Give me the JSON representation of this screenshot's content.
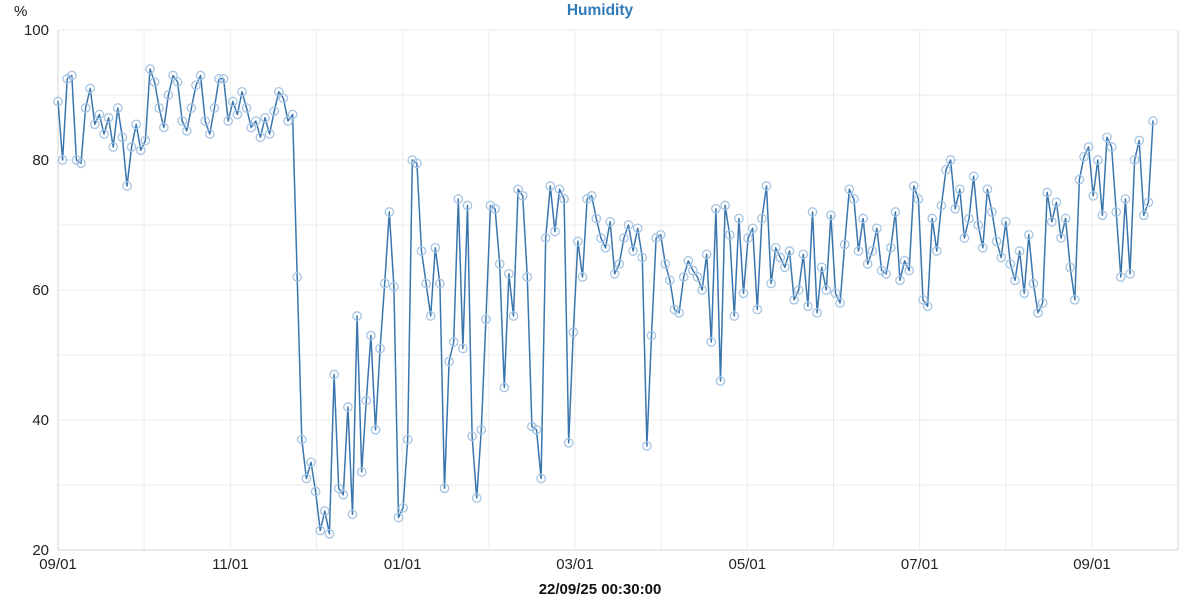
{
  "chart_data": {
    "type": "line",
    "title": "Humidity",
    "footer_timestamp": "22/09/25 00:30:00",
    "grid": true,
    "legend": null,
    "y_axis": {
      "unit": "%",
      "min": 20,
      "max": 100,
      "labeled_ticks": [
        100,
        80,
        60,
        40,
        20
      ],
      "grid_step": 10
    },
    "x_axis": {
      "labeled_ticks": [
        "09/01",
        "11/01",
        "01/01",
        "03/01",
        "05/01",
        "07/01",
        "09/01"
      ],
      "minor_gridlines_per_label": 2
    },
    "series": [
      {
        "name": "Humidity",
        "line_color": "#3a76ad",
        "marker": "hollow-circle",
        "marker_color": "#a6c5e4",
        "values": [
          89,
          80,
          92.5,
          93,
          80,
          79.5,
          88,
          91,
          85.5,
          87,
          84,
          86.5,
          82,
          88,
          83.5,
          76,
          82,
          85.5,
          81.5,
          83,
          94,
          92,
          88,
          85,
          90,
          93,
          92,
          86,
          84.5,
          88,
          91.5,
          93,
          86,
          84,
          88,
          92.5,
          92.5,
          86,
          89,
          87,
          90.5,
          88,
          85,
          86,
          83.5,
          86.5,
          84,
          87.5,
          90.5,
          89.5,
          86,
          87,
          62,
          37,
          31,
          33.5,
          29,
          23,
          26,
          22.5,
          47,
          29.5,
          28.5,
          42,
          25.5,
          56,
          32,
          43,
          53,
          38.5,
          51,
          61,
          72,
          60.5,
          25,
          26.5,
          37,
          80,
          79.5,
          66,
          61,
          56,
          66.5,
          61,
          29.5,
          49,
          52,
          74,
          51,
          73,
          37.5,
          28,
          38.5,
          55.5,
          73,
          72.5,
          64,
          45,
          62.5,
          56,
          75.5,
          74.5,
          62,
          39,
          38.5,
          31,
          68,
          76,
          69,
          75.5,
          74,
          36.5,
          53.5,
          67.5,
          62,
          74,
          74.5,
          71,
          68,
          66.5,
          70.5,
          62.5,
          64,
          68,
          70,
          66,
          69.5,
          65,
          36,
          53,
          68,
          68.5,
          64,
          61.5,
          57,
          56.5,
          62,
          64.5,
          63,
          62,
          60,
          65.5,
          52,
          72.5,
          46,
          73,
          68.5,
          56,
          71,
          59.5,
          68,
          69.5,
          57,
          71,
          76,
          61,
          66.5,
          65,
          63.5,
          66,
          58.5,
          60,
          65.5,
          57.5,
          72,
          56.5,
          63.5,
          60,
          71.5,
          59.5,
          58,
          67,
          75.5,
          74,
          66,
          71,
          64,
          66,
          69.5,
          63,
          62.5,
          66.5,
          72,
          61.5,
          64.5,
          63,
          76,
          74,
          58.5,
          57.5,
          71,
          66,
          73,
          78.5,
          80,
          72.5,
          75.5,
          68,
          71,
          77.5,
          70,
          66.5,
          75.5,
          72,
          67.5,
          65,
          70.5,
          64,
          61.5,
          66,
          59.5,
          68.5,
          61,
          56.5,
          58,
          75,
          70.5,
          73.5,
          68,
          71,
          63.5,
          58.5,
          77,
          80.5,
          82,
          74.5,
          80,
          71.5,
          83.5,
          82,
          72,
          62,
          74,
          62.5,
          80,
          83,
          71.5,
          73.5,
          86
        ]
      }
    ]
  },
  "colors": {
    "title": "#2f7ab9",
    "axis_text": "#222222",
    "gridline": "#ebebeb",
    "axis_border": "#d6d6d6",
    "footer_text": "#111111"
  }
}
